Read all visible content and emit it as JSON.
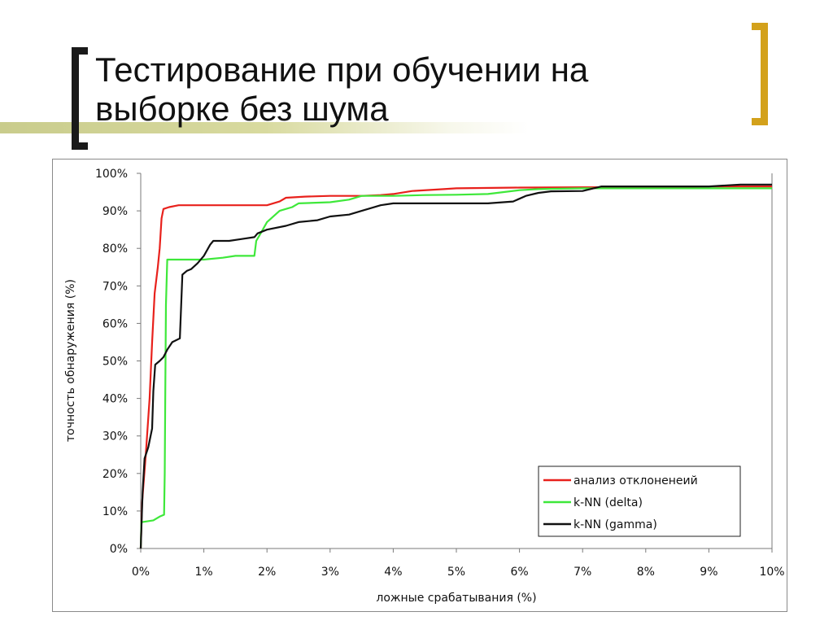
{
  "slide": {
    "title": "Тестирование при обучении на выборке без шума",
    "colors": {
      "bracket_left": "#1a1a1a",
      "bracket_right": "#d3a11b",
      "bar": "#cfd193"
    }
  },
  "chart_data": {
    "type": "line",
    "xlabel": "ложные срабатывания (%)",
    "ylabel": "точность обнаружения (%)",
    "xlim": [
      0,
      10
    ],
    "ylim": [
      0,
      100
    ],
    "x_ticks": [
      0,
      1,
      2,
      3,
      4,
      5,
      6,
      7,
      8,
      9,
      10
    ],
    "y_ticks": [
      0,
      10,
      20,
      30,
      40,
      50,
      60,
      70,
      80,
      90,
      100
    ],
    "x_tick_labels": [
      "0%",
      "1%",
      "2%",
      "3%",
      "4%",
      "5%",
      "6%",
      "7%",
      "8%",
      "9%",
      "10%"
    ],
    "y_tick_labels": [
      "0%",
      "10%",
      "20%",
      "30%",
      "40%",
      "50%",
      "60%",
      "70%",
      "80%",
      "90%",
      "100%"
    ],
    "grid": false,
    "legend_position": "bottom-right",
    "series": [
      {
        "name": "анализ отклоненеий",
        "color": "#e8211c",
        "points": [
          [
            0,
            0
          ],
          [
            0.02,
            12
          ],
          [
            0.08,
            25
          ],
          [
            0.14,
            40
          ],
          [
            0.18,
            55
          ],
          [
            0.22,
            68
          ],
          [
            0.27,
            75
          ],
          [
            0.3,
            80
          ],
          [
            0.33,
            88
          ],
          [
            0.36,
            90.5
          ],
          [
            0.45,
            91
          ],
          [
            0.6,
            91.5
          ],
          [
            1.0,
            91.5
          ],
          [
            1.5,
            91.5
          ],
          [
            2.0,
            91.5
          ],
          [
            2.2,
            92.5
          ],
          [
            2.3,
            93.5
          ],
          [
            2.6,
            93.8
          ],
          [
            3.0,
            94
          ],
          [
            3.5,
            94
          ],
          [
            3.8,
            94.2
          ],
          [
            4.0,
            94.5
          ],
          [
            4.3,
            95.3
          ],
          [
            4.8,
            95.8
          ],
          [
            5.0,
            96
          ],
          [
            6.0,
            96.2
          ],
          [
            7.0,
            96.3
          ],
          [
            8.0,
            96.3
          ],
          [
            9.0,
            96.5
          ],
          [
            10.0,
            96.5
          ]
        ]
      },
      {
        "name": "k-NN (delta)",
        "color": "#3ee83a",
        "points": [
          [
            0,
            0
          ],
          [
            0.01,
            7
          ],
          [
            0.2,
            7.5
          ],
          [
            0.3,
            8.5
          ],
          [
            0.37,
            9
          ],
          [
            0.38,
            20
          ],
          [
            0.39,
            45
          ],
          [
            0.4,
            65
          ],
          [
            0.42,
            77
          ],
          [
            0.6,
            77
          ],
          [
            1.0,
            77
          ],
          [
            1.3,
            77.5
          ],
          [
            1.5,
            78
          ],
          [
            1.8,
            78
          ],
          [
            1.83,
            82
          ],
          [
            1.9,
            84
          ],
          [
            2.0,
            87
          ],
          [
            2.2,
            90
          ],
          [
            2.4,
            91
          ],
          [
            2.5,
            92
          ],
          [
            3.0,
            92.3
          ],
          [
            3.3,
            93
          ],
          [
            3.5,
            94
          ],
          [
            4.0,
            94
          ],
          [
            4.5,
            94.2
          ],
          [
            5.0,
            94.3
          ],
          [
            5.5,
            94.5
          ],
          [
            6.0,
            95.5
          ],
          [
            6.3,
            95.8
          ],
          [
            7.0,
            96
          ],
          [
            8.0,
            96
          ],
          [
            9.0,
            96
          ],
          [
            10.0,
            96
          ]
        ]
      },
      {
        "name": "k-NN (gamma)",
        "color": "#111111",
        "points": [
          [
            0,
            0
          ],
          [
            0.03,
            15
          ],
          [
            0.06,
            24
          ],
          [
            0.12,
            27
          ],
          [
            0.18,
            32
          ],
          [
            0.2,
            42
          ],
          [
            0.23,
            49
          ],
          [
            0.3,
            50
          ],
          [
            0.36,
            51
          ],
          [
            0.42,
            53
          ],
          [
            0.5,
            55
          ],
          [
            0.62,
            56
          ],
          [
            0.66,
            73
          ],
          [
            0.73,
            74
          ],
          [
            0.8,
            74.5
          ],
          [
            0.9,
            76
          ],
          [
            1.0,
            78
          ],
          [
            1.1,
            81
          ],
          [
            1.15,
            82
          ],
          [
            1.4,
            82
          ],
          [
            1.6,
            82.5
          ],
          [
            1.8,
            83
          ],
          [
            1.85,
            84
          ],
          [
            2.0,
            85
          ],
          [
            2.3,
            86
          ],
          [
            2.5,
            87
          ],
          [
            2.8,
            87.5
          ],
          [
            3.0,
            88.5
          ],
          [
            3.3,
            89
          ],
          [
            3.5,
            90
          ],
          [
            3.8,
            91.5
          ],
          [
            4.0,
            92
          ],
          [
            4.5,
            92
          ],
          [
            5.0,
            92
          ],
          [
            5.5,
            92
          ],
          [
            5.9,
            92.5
          ],
          [
            6.1,
            94
          ],
          [
            6.3,
            94.8
          ],
          [
            6.5,
            95.2
          ],
          [
            7.0,
            95.3
          ],
          [
            7.3,
            96.5
          ],
          [
            8.0,
            96.5
          ],
          [
            9.0,
            96.5
          ],
          [
            9.5,
            97
          ],
          [
            10.0,
            97
          ]
        ]
      }
    ]
  }
}
